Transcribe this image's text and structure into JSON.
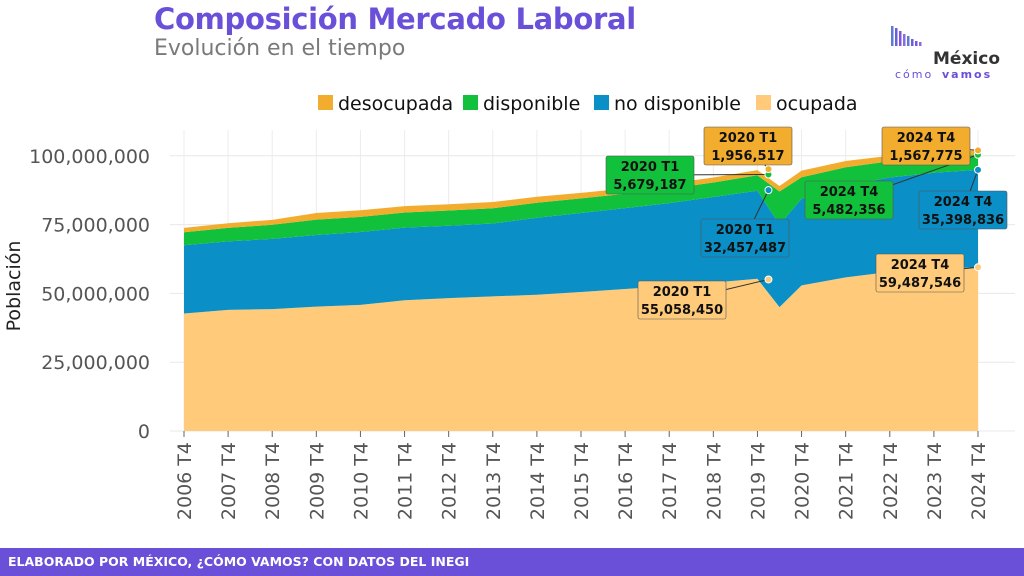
{
  "header": {
    "title": "Composición Mercado Laboral",
    "subtitle": "Evolución en el tiempo"
  },
  "logo": {
    "line1": "México",
    "line2a": "cómo",
    "line2b": "vamos"
  },
  "footer": {
    "text": "ELABORADO POR MÉXICO, ¿CÓMO VAMOS? CON DATOS DEL INEGI"
  },
  "colors": {
    "desocupada": "#f2ad2e",
    "disponible": "#12c13b",
    "no_disponible": "#0a8fc6",
    "ocupada": "#ffcb7a",
    "brand": "#6a4fd9"
  },
  "chart_data": {
    "type": "area",
    "stacked": true,
    "ylabel": "Población",
    "ylim": [
      0,
      105000000
    ],
    "yticks": [
      0,
      25000000,
      50000000,
      75000000,
      100000000
    ],
    "ytick_labels": [
      "0",
      "25,000,000",
      "50,000,000",
      "75,000,000",
      "100,000,000"
    ],
    "xticks": [
      "2006 T4",
      "2007 T4",
      "2008 T4",
      "2009 T4",
      "2010 T4",
      "2011 T4",
      "2012 T4",
      "2013 T4",
      "2014 T4",
      "2015 T4",
      "2016 T4",
      "2017 T4",
      "2018 T4",
      "2019 T4",
      "2020 T4",
      "2021 T4",
      "2022 T4",
      "2023 T4",
      "2024 T4"
    ],
    "legend": {
      "position": "top",
      "order": [
        "desocupada",
        "disponible",
        "no disponible",
        "ocupada"
      ]
    },
    "grid": true,
    "annual_series_x": [
      "2006 T4",
      "2007 T4",
      "2008 T4",
      "2009 T4",
      "2010 T4",
      "2011 T4",
      "2012 T4",
      "2013 T4",
      "2014 T4",
      "2015 T4",
      "2016 T4",
      "2017 T4",
      "2018 T4",
      "2019 T4",
      "2020 T4",
      "2021 T4",
      "2022 T4",
      "2023 T4",
      "2024 T4"
    ],
    "series": [
      {
        "name": "ocupada",
        "values": [
          42700000,
          44000000,
          44300000,
          45200000,
          45800000,
          47500000,
          48300000,
          48900000,
          49500000,
          50500000,
          51600000,
          52600000,
          53900000,
          55300000,
          52900000,
          55800000,
          57800000,
          58900000,
          59487546
        ]
      },
      {
        "name": "no disponible",
        "values": [
          24800000,
          24900000,
          25500000,
          26000000,
          26500000,
          26400000,
          26300000,
          26500000,
          28000000,
          28700000,
          29400000,
          30200000,
          31100000,
          32000000,
          31500000,
          33400000,
          34300000,
          34900000,
          35398836
        ]
      },
      {
        "name": "disponible",
        "values": [
          4700000,
          4900000,
          5100000,
          5600000,
          5500000,
          5500000,
          5500000,
          5500000,
          5400000,
          5300000,
          5200000,
          5200000,
          5300000,
          5600000,
          7800000,
          6600000,
          5900000,
          5600000,
          5482356
        ]
      },
      {
        "name": "desocupada",
        "values": [
          1600000,
          1700000,
          1800000,
          2400000,
          2400000,
          2300000,
          2300000,
          2300000,
          2200000,
          2000000,
          1900000,
          1900000,
          1800000,
          1900000,
          2400000,
          2300000,
          2000000,
          1700000,
          1567775
        ]
      }
    ],
    "covid_dip": {
      "x": "2020 T2",
      "ocupada": 45000000,
      "no_disponible": 30000000,
      "disponible": 12000000,
      "desocupada": 2000000
    },
    "annotations": [
      {
        "series": "ocupada",
        "x": "2020 T1",
        "label": "2020 T1",
        "value_text": "55,058,450",
        "y": 55058450
      },
      {
        "series": "no disponible",
        "x": "2020 T1",
        "label": "2020 T1",
        "value_text": "32,457,487",
        "y": 87515937
      },
      {
        "series": "disponible",
        "x": "2020 T1",
        "label": "2020 T1",
        "value_text": "5,679,187",
        "y": 93195124
      },
      {
        "series": "desocupada",
        "x": "2020 T1",
        "label": "2020 T1",
        "value_text": "1,956,517",
        "y": 95151641
      },
      {
        "series": "ocupada",
        "x": "2024 T4",
        "label": "2024 T4",
        "value_text": "59,487,546",
        "y": 59487546
      },
      {
        "series": "no disponible",
        "x": "2024 T4",
        "label": "2024 T4",
        "value_text": "35,398,836",
        "y": 94886382
      },
      {
        "series": "disponible",
        "x": "2024 T4",
        "label": "2024 T4",
        "value_text": "5,482,356",
        "y": 100368738
      },
      {
        "series": "desocupada",
        "x": "2024 T4",
        "label": "2024 T4",
        "value_text": "1,567,775",
        "y": 101936513
      }
    ]
  }
}
